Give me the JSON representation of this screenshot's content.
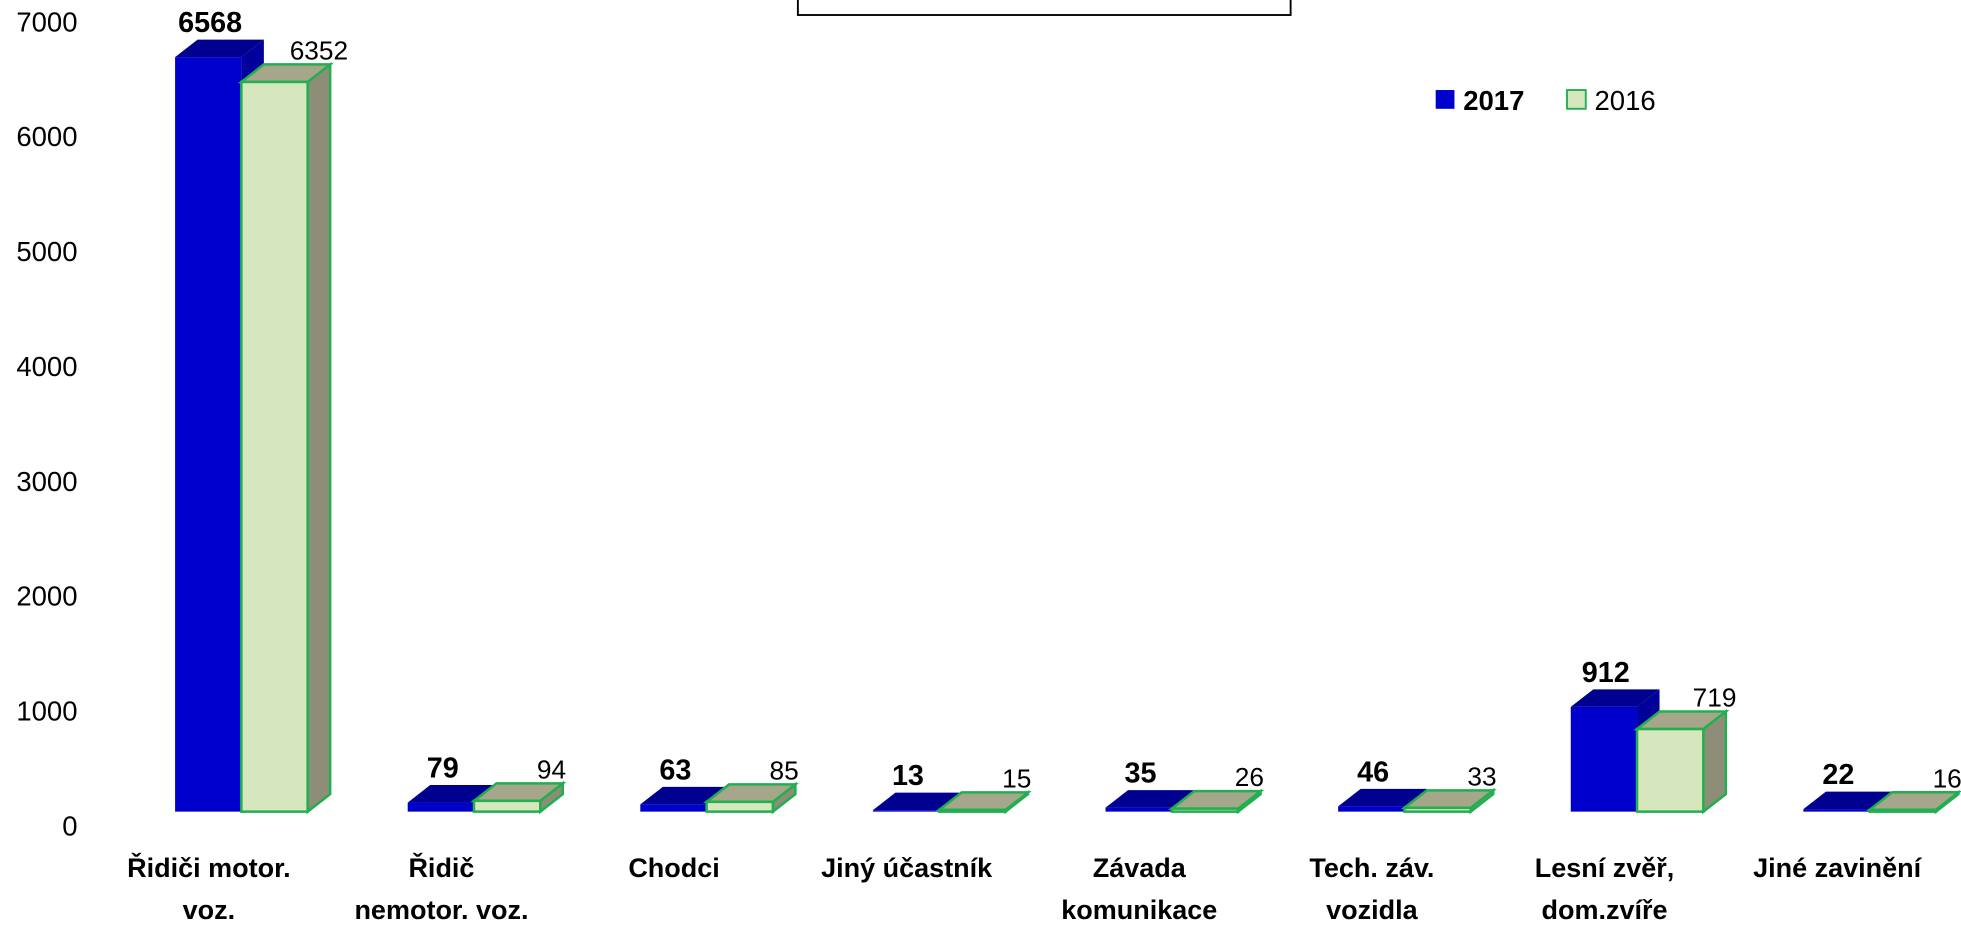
{
  "chart_data": {
    "type": "bar3d",
    "categories": [
      "Řidiči motor.\nvoz.",
      "Řidič\nnemotor. voz.",
      "Chodci",
      "Jiný účastník",
      "Závada\nkomunikace",
      "Tech. záv.\nvozidla",
      "Lesní zvěř,\ndom.zvíře",
      "Jiné zavinění"
    ],
    "series": [
      {
        "name": "2017",
        "color": "#0000cc",
        "values": [
          6568,
          79,
          63,
          13,
          35,
          46,
          912,
          22
        ]
      },
      {
        "name": "2016",
        "color": "#d6e6bd",
        "values": [
          6352,
          94,
          85,
          15,
          26,
          33,
          719,
          16
        ]
      }
    ],
    "ylim": [
      0,
      7000
    ],
    "yticks": [
      0,
      1000,
      2000,
      3000,
      4000,
      5000,
      6000,
      7000
    ],
    "legend": "top-right"
  }
}
